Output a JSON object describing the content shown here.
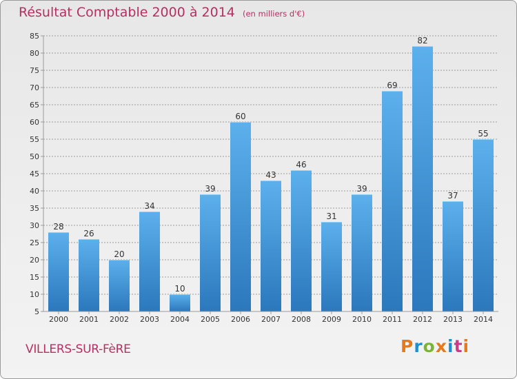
{
  "header": {
    "title": "Résultat Comptable 2000 à 2014",
    "unit": "(en milliers d'€)"
  },
  "footer": {
    "commune": "VILLERS-SUR-FèRE",
    "brand": "Proxiti",
    "brand_colors": [
      "#e8781c",
      "#1f8fd0",
      "#7bb432",
      "#e8781c",
      "#1f8fd0",
      "#c83c8c",
      "#e8781c"
    ]
  },
  "colors": {
    "title": "#b53060",
    "bar_light": "#5cb0ec",
    "bar_dark": "#2b78bc",
    "grid": "#9b9b9b",
    "axis_text": "#333333"
  },
  "chart_data": {
    "type": "bar",
    "title": "Résultat Comptable 2000 à 2014",
    "subtitle": "(en milliers d'€)",
    "xlabel": "",
    "ylabel": "",
    "categories": [
      "2000",
      "2001",
      "2002",
      "2003",
      "2004",
      "2005",
      "2006",
      "2007",
      "2008",
      "2009",
      "2010",
      "2011",
      "2012",
      "2013",
      "2014"
    ],
    "values": [
      28,
      26,
      20,
      34,
      10,
      39,
      60,
      43,
      46,
      31,
      39,
      69,
      82,
      37,
      55
    ],
    "ylim": [
      5,
      85
    ],
    "yticks": [
      5,
      10,
      15,
      20,
      25,
      30,
      35,
      40,
      45,
      50,
      55,
      60,
      65,
      70,
      75,
      80,
      85
    ],
    "grid": true,
    "data_labels": true
  }
}
